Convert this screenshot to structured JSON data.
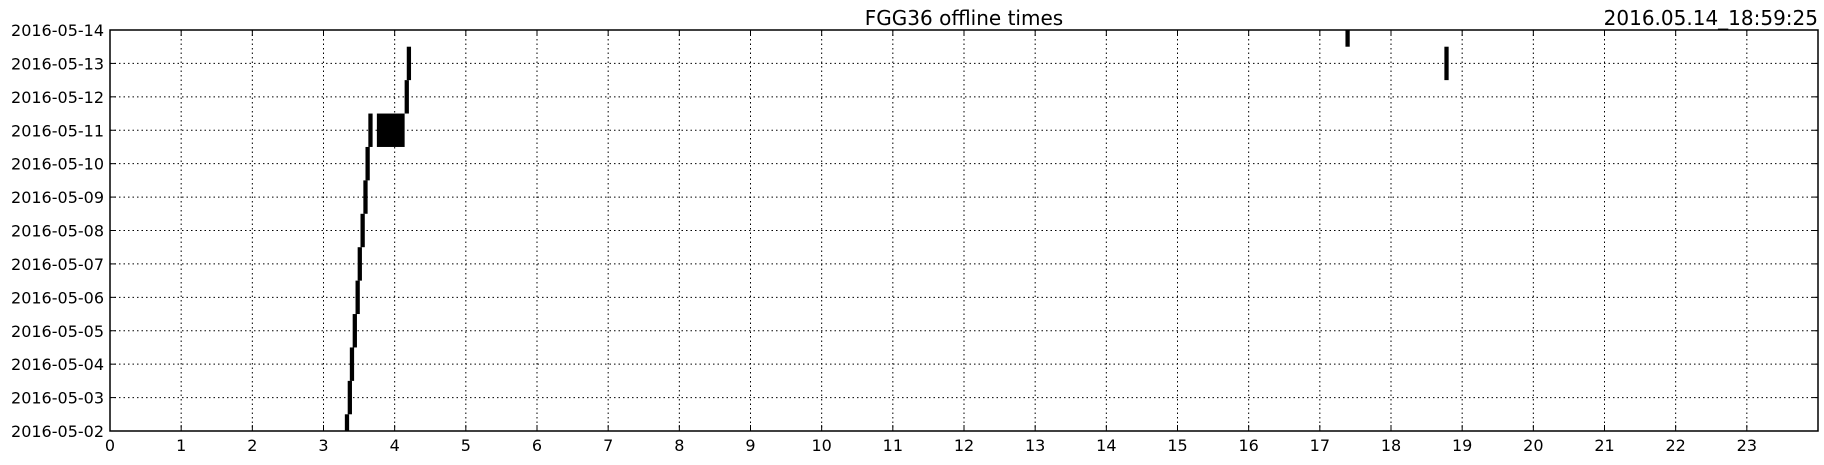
{
  "chart_data": {
    "type": "bar",
    "title": "FGG36 offline times",
    "timestamp": "2016.05.14_18:59:25",
    "xlabel": "",
    "ylabel": "",
    "xlim": [
      0,
      24
    ],
    "ylim": [
      "2016-05-02",
      "2016-05-14"
    ],
    "x_ticks": [
      "0",
      "1",
      "2",
      "3",
      "4",
      "5",
      "6",
      "7",
      "8",
      "9",
      "10",
      "11",
      "12",
      "13",
      "14",
      "15",
      "16",
      "17",
      "18",
      "19",
      "20",
      "21",
      "22",
      "23"
    ],
    "y_ticks": [
      "2016-05-02",
      "2016-05-03",
      "2016-05-04",
      "2016-05-05",
      "2016-05-06",
      "2016-05-07",
      "2016-05-08",
      "2016-05-09",
      "2016-05-10",
      "2016-05-11",
      "2016-05-12",
      "2016-05-13",
      "2016-05-14"
    ],
    "grid": true,
    "bar_color": "#000000",
    "offline_periods": [
      {
        "date": "2016-05-02",
        "start_hour": 3.3,
        "end_hour": 3.36,
        "y_from": 0.0,
        "y_to": 0.5
      },
      {
        "date": "2016-05-03",
        "start_hour": 3.34,
        "end_hour": 3.4,
        "y_from": 0.5,
        "y_to": 1.5
      },
      {
        "date": "2016-05-04",
        "start_hour": 3.37,
        "end_hour": 3.43,
        "y_from": 1.5,
        "y_to": 2.5
      },
      {
        "date": "2016-05-05",
        "start_hour": 3.41,
        "end_hour": 3.47,
        "y_from": 2.5,
        "y_to": 3.5
      },
      {
        "date": "2016-05-06",
        "start_hour": 3.45,
        "end_hour": 3.51,
        "y_from": 3.5,
        "y_to": 4.5
      },
      {
        "date": "2016-05-07",
        "start_hour": 3.48,
        "end_hour": 3.54,
        "y_from": 4.5,
        "y_to": 5.5
      },
      {
        "date": "2016-05-08",
        "start_hour": 3.52,
        "end_hour": 3.58,
        "y_from": 5.5,
        "y_to": 6.5
      },
      {
        "date": "2016-05-09",
        "start_hour": 3.56,
        "end_hour": 3.62,
        "y_from": 6.5,
        "y_to": 7.5
      },
      {
        "date": "2016-05-10",
        "start_hour": 3.59,
        "end_hour": 3.65,
        "y_from": 7.5,
        "y_to": 8.5
      },
      {
        "date": "2016-05-11",
        "start_hour": 3.63,
        "end_hour": 3.69,
        "y_from": 8.5,
        "y_to": 9.5
      },
      {
        "date": "2016-05-11",
        "start_hour": 3.75,
        "end_hour": 4.14,
        "y_from": 8.5,
        "y_to": 9.5
      },
      {
        "date": "2016-05-12",
        "start_hour": 4.14,
        "end_hour": 4.2,
        "y_from": 9.5,
        "y_to": 10.5
      },
      {
        "date": "2016-05-13",
        "start_hour": 4.17,
        "end_hour": 4.23,
        "y_from": 10.5,
        "y_to": 11.5
      },
      {
        "date": "2016-05-13",
        "start_hour": 18.75,
        "end_hour": 18.81,
        "y_from": 10.5,
        "y_to": 11.5
      },
      {
        "date": "2016-05-14",
        "start_hour": 17.36,
        "end_hour": 17.42,
        "y_from": 11.5,
        "y_to": 12.0
      }
    ]
  }
}
